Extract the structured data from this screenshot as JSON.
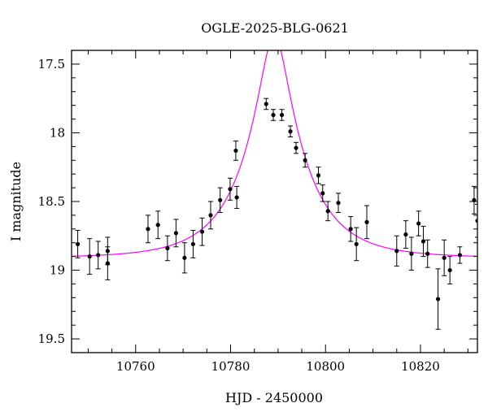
{
  "chart_data": {
    "type": "scatter",
    "title": "OGLE-2025-BLG-0621",
    "xlabel": "HJD - 2450000",
    "ylabel": "I magnitude",
    "xlim": [
      10746.5,
      10832
    ],
    "ylim": [
      19.6,
      17.4
    ],
    "y_inverted": true,
    "xticks": [
      10760,
      10780,
      10800,
      10820
    ],
    "xtick_labels": [
      "10760",
      "10780",
      "10800",
      "10820"
    ],
    "yticks": [
      17.5,
      18,
      18.5,
      19,
      19.5
    ],
    "ytick_labels": [
      "17.5",
      "18",
      "18.5",
      "19",
      "19.5"
    ],
    "colors": {
      "points": "#000000",
      "model": "#ff00ff",
      "axes": "#000000"
    },
    "model": {
      "name": "",
      "t0": 10789.2,
      "u0": 0.23,
      "tE": 12.5,
      "baseline_mag": 18.91
    },
    "series": [
      {
        "name": "",
        "x": [
          10747.8,
          10750.3,
          10752.1,
          10754.1,
          10754.1,
          10762.6,
          10764.7,
          10766.7,
          10768.5,
          10770.3,
          10772.1,
          10774.0,
          10775.8,
          10777.8,
          10779.9,
          10781.1,
          10781.3,
          10787.5,
          10789.0,
          10790.8,
          10792.6,
          10793.8,
          10795.7,
          10798.5,
          10799.4,
          10800.5,
          10802.7,
          10805.3,
          10806.5,
          10808.7,
          10815.0,
          10816.9,
          10818.1,
          10819.6,
          10820.6,
          10821.5,
          10823.7,
          10825.0,
          10826.2,
          10828.3,
          10831.3,
          10832.0
        ],
        "y": [
          18.81,
          18.9,
          18.89,
          18.86,
          18.95,
          18.7,
          18.67,
          18.84,
          18.73,
          18.91,
          18.81,
          18.72,
          18.6,
          18.49,
          18.41,
          18.13,
          18.47,
          17.79,
          17.87,
          17.87,
          17.99,
          18.11,
          18.2,
          18.31,
          18.44,
          18.57,
          18.51,
          18.7,
          18.81,
          18.65,
          18.86,
          18.74,
          18.88,
          18.66,
          18.79,
          18.88,
          19.21,
          18.91,
          19.0,
          18.89,
          18.49,
          18.64
        ],
        "yerr": [
          0.1,
          0.13,
          0.1,
          0.1,
          0.12,
          0.1,
          0.1,
          0.09,
          0.1,
          0.11,
          0.1,
          0.1,
          0.1,
          0.09,
          0.08,
          0.07,
          0.08,
          0.04,
          0.04,
          0.04,
          0.04,
          0.04,
          0.05,
          0.06,
          0.06,
          0.07,
          0.07,
          0.09,
          0.12,
          0.12,
          0.11,
          0.1,
          0.12,
          0.09,
          0.11,
          0.1,
          0.22,
          0.13,
          0.1,
          0.06,
          0.1,
          0.12
        ]
      }
    ]
  }
}
